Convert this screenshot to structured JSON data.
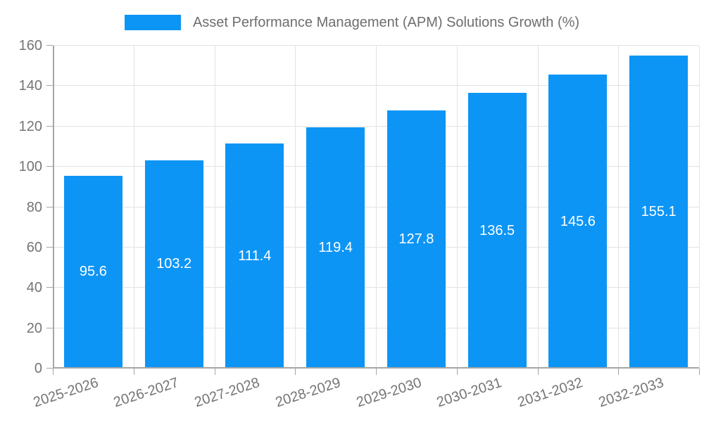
{
  "chart_data": {
    "type": "bar",
    "title": "Asset Performance Management (APM) Solutions Growth (%)",
    "categories": [
      "2025-2026",
      "2026-2027",
      "2027-2028",
      "2028-2029",
      "2029-2030",
      "2030-2031",
      "2031-2032",
      "2032-2033"
    ],
    "values": [
      95.6,
      103.2,
      111.4,
      119.4,
      127.8,
      136.5,
      145.6,
      155.1
    ],
    "xlabel": "",
    "ylabel": "",
    "ylim": [
      0,
      160
    ],
    "ytick_step": 20,
    "yticks": [
      0,
      20,
      40,
      60,
      80,
      100,
      120,
      140,
      160
    ],
    "grid": true,
    "legend_position": "top",
    "value_label_position": "inside-center",
    "value_label_decimals": 1,
    "x_tick_rotation_deg": -18
  },
  "colors": {
    "bar": "#0D95F5",
    "grid": "#E3E3E3",
    "axis": "#A6A6A6",
    "tick_text": "#757575",
    "legend_text": "#6E6E6E",
    "value_text": "#FFFFFF",
    "background": "#FFFFFF"
  }
}
